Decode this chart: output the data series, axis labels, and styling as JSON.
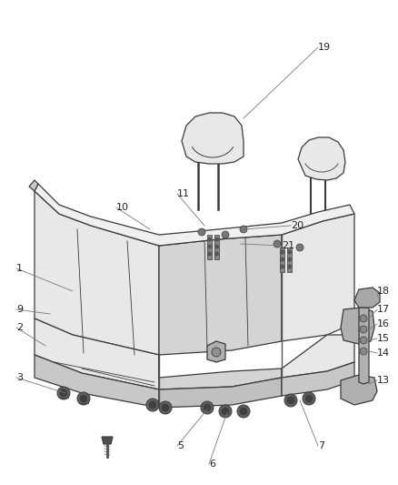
{
  "background_color": "#ffffff",
  "line_color": "#3a3a3a",
  "text_color": "#222222",
  "seat_fill": "#e8e8e8",
  "seat_dark": "#c8c8c8",
  "seat_mid": "#d4d4d4",
  "metal_fill": "#b0b0b0",
  "screw_fill": "#505050",
  "label_fontsize": 8,
  "leader_linewidth": 0.5,
  "part_linewidth": 0.9,
  "figsize": [
    4.38,
    5.33
  ],
  "dpi": 100
}
